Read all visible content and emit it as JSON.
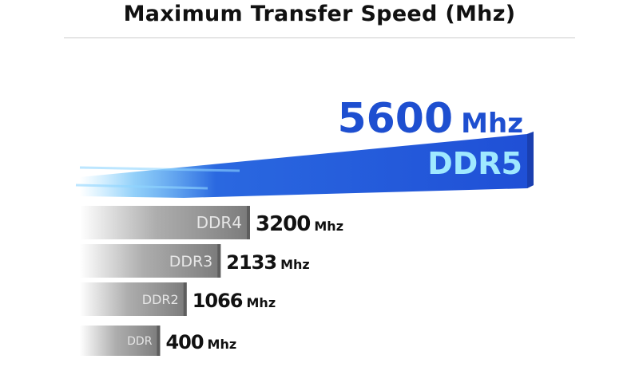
{
  "chart_data": {
    "type": "bar",
    "orientation": "horizontal",
    "title": "Maximum Transfer Speed (Mhz)",
    "unit": "Mhz",
    "categories": [
      "DDR5",
      "DDR4",
      "DDR3",
      "DDR2",
      "DDR"
    ],
    "values": [
      5600,
      3200,
      2133,
      1066,
      400
    ],
    "value_labels": [
      "5600",
      "3200",
      "2133",
      "1066",
      "400"
    ],
    "colors": {
      "highlight": "#1f4fd6",
      "highlight_label": "#9fe8ff",
      "highlight_value": "#1e4fd0",
      "others": "#7a7a7a",
      "others_label": "#e6e6e6",
      "value_text": "#111111"
    },
    "grid": false,
    "legend": "none"
  }
}
